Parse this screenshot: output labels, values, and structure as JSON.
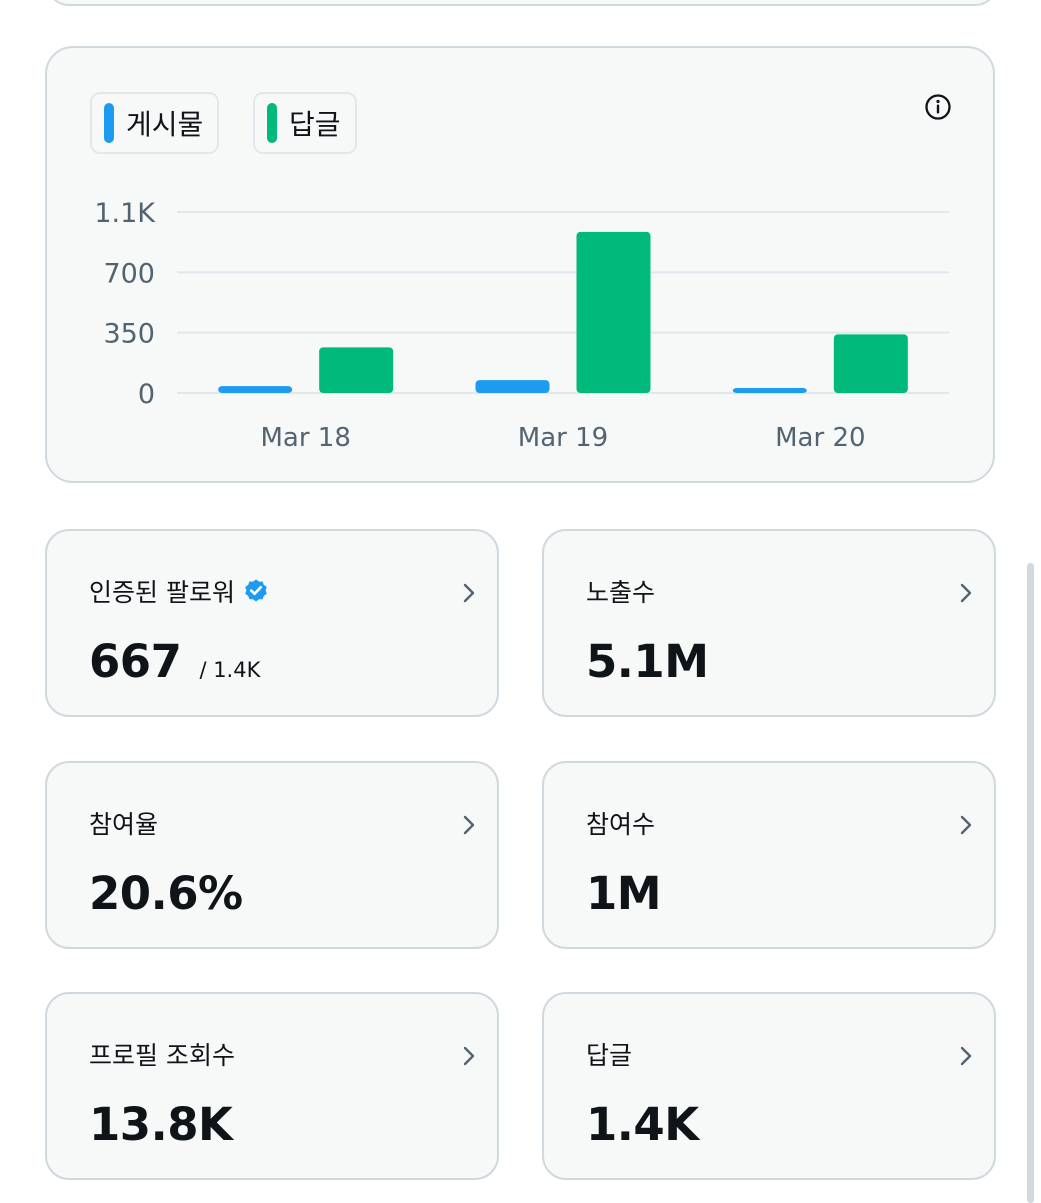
{
  "legend": [
    {
      "label": "게시물",
      "color": "#1d9bf0"
    },
    {
      "label": "답글",
      "color": "#00ba7c"
    }
  ],
  "info_icon": "info-icon",
  "chart_data": {
    "type": "bar",
    "categories": [
      "Mar 18",
      "Mar 19",
      "Mar 20"
    ],
    "series": [
      {
        "name": "게시물",
        "color": "#1d9bf0",
        "values": [
          40,
          75,
          15
        ]
      },
      {
        "name": "답글",
        "color": "#00ba7c",
        "values": [
          265,
          935,
          340
        ]
      }
    ],
    "yticks": [
      {
        "value": 0,
        "label": "0"
      },
      {
        "value": 350,
        "label": "350"
      },
      {
        "value": 700,
        "label": "700"
      },
      {
        "value": 1050,
        "label": "1.1K"
      }
    ],
    "ylim": [
      0,
      1050
    ],
    "title": "",
    "xlabel": "",
    "ylabel": "",
    "grid": true
  },
  "metrics": [
    {
      "label": "인증된 팔로워",
      "value": "667",
      "sub": "/ 1.4K",
      "verified": true
    },
    {
      "label": "노출수",
      "value": "5.1M"
    },
    {
      "label": "참여율",
      "value": "20.6%"
    },
    {
      "label": "참여수",
      "value": "1M"
    },
    {
      "label": "프로필 조회수",
      "value": "13.8K"
    },
    {
      "label": "답글",
      "value": "1.4K"
    }
  ]
}
